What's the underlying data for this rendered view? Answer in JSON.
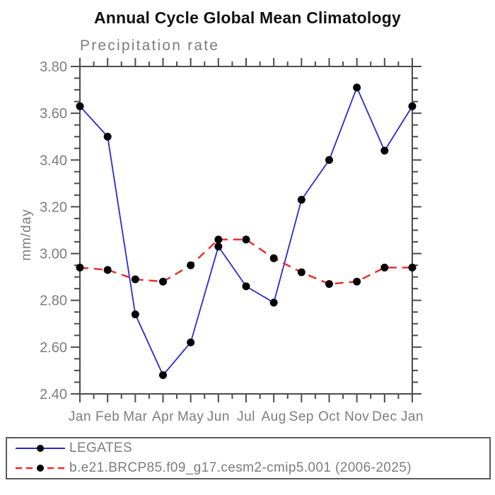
{
  "chart_data": {
    "type": "line",
    "title": "Annual Cycle Global Mean Climatology",
    "subtitle": "Precipitation rate",
    "ylabel": "mm/day",
    "xlabel": "",
    "categories": [
      "Jan",
      "Feb",
      "Mar",
      "Apr",
      "May",
      "Jun",
      "Jul",
      "Aug",
      "Sep",
      "Oct",
      "Nov",
      "Dec",
      "Jan"
    ],
    "ylim": [
      2.4,
      3.8
    ],
    "ytick_labels": [
      "2.40",
      "2.60",
      "2.80",
      "3.00",
      "3.20",
      "3.40",
      "3.60",
      "3.80"
    ],
    "ytick_step": 0.2,
    "yminor_step": 0.05,
    "xminor_step": 0.5,
    "grid": false,
    "legend_position": "bottom",
    "series": [
      {
        "name": "LEGATES",
        "style": "solid",
        "color": "#2a2ad4",
        "marker": "circle",
        "marker_color": "#000000",
        "values": [
          3.63,
          3.5,
          2.74,
          2.48,
          2.62,
          3.03,
          2.86,
          2.79,
          3.23,
          3.4,
          3.71,
          3.44,
          3.63
        ]
      },
      {
        "name": "b.e21.BRCP85.f09_g17.cesm2-cmip5.001 (2006-2025)",
        "style": "dashed",
        "color": "#ee2626",
        "marker": "circle",
        "marker_color": "#000000",
        "values": [
          2.94,
          2.93,
          2.89,
          2.88,
          2.95,
          3.06,
          3.06,
          2.98,
          2.92,
          2.87,
          2.88,
          2.94,
          2.94
        ]
      }
    ]
  },
  "colors": {
    "axis": "#4c4c4c",
    "tick_label": "#7d7d7d",
    "title_text": "#111111",
    "background": "#ffffff",
    "legend_border": "#5a5a5a"
  }
}
